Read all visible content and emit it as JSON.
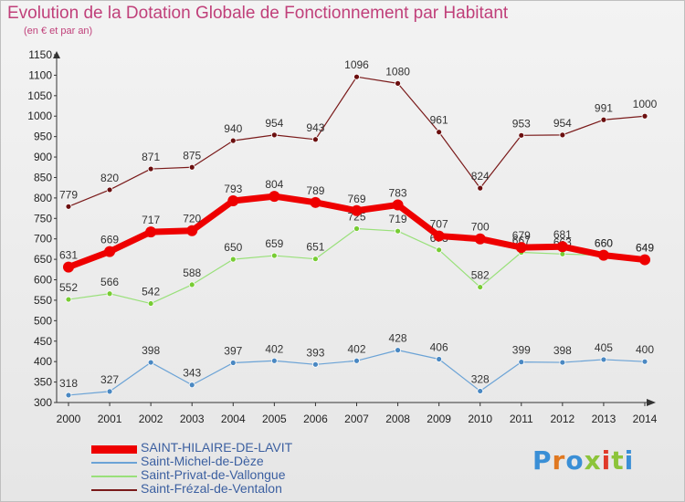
{
  "title": "Evolution de la Dotation Globale de Fonctionnement par Habitant",
  "subtitle": "(en € et par an)",
  "logo": "Proxiti",
  "chart_data": {
    "type": "line",
    "x": [
      "2000",
      "2001",
      "2002",
      "2003",
      "2004",
      "2005",
      "2006",
      "2007",
      "2008",
      "2009",
      "2010",
      "2011",
      "2012",
      "2013",
      "2014"
    ],
    "ylim": [
      300,
      1150
    ],
    "yticks": [
      300,
      350,
      400,
      450,
      500,
      550,
      600,
      650,
      700,
      750,
      800,
      850,
      900,
      950,
      1000,
      1050,
      1100,
      1150
    ],
    "grid": false,
    "legend_position": "bottom-left",
    "series": [
      {
        "name": "Saint-Frézal-de-Ventalon",
        "color": "#7a1a1a",
        "dot_color": "#6b0f0f",
        "width": 1.2,
        "dot_r": 3,
        "values": [
          779,
          820,
          871,
          875,
          940,
          954,
          943,
          1096,
          1080,
          961,
          824,
          953,
          954,
          991,
          1000
        ]
      },
      {
        "name": "Saint-Privat-de-Vallongue",
        "color": "#99e07a",
        "dot_color": "#77cc33",
        "width": 1.2,
        "dot_r": 3,
        "values": [
          552,
          566,
          542,
          588,
          650,
          659,
          651,
          725,
          719,
          673,
          582,
          667,
          663,
          660,
          649
        ]
      },
      {
        "name": "Saint-Michel-de-Dèze",
        "color": "#6ba3d6",
        "dot_color": "#4a88c2",
        "width": 1.2,
        "dot_r": 3,
        "values": [
          318,
          327,
          398,
          343,
          397,
          402,
          393,
          402,
          428,
          406,
          328,
          399,
          398,
          405,
          400
        ]
      },
      {
        "name": "SAINT-HILAIRE-DE-LAVIT",
        "color": "#ee0000",
        "dot_color": "#ee0000",
        "width": 7,
        "dot_r": 6,
        "values": [
          631,
          669,
          717,
          720,
          793,
          804,
          789,
          769,
          783,
          707,
          700,
          679,
          681,
          660,
          649
        ]
      }
    ],
    "legend_order": [
      3,
      2,
      1,
      0
    ],
    "value_labels": [
      [
        "779",
        "820",
        "871",
        "875",
        "940",
        "954",
        "943",
        "1096",
        "1080",
        "961",
        "824",
        "953",
        "954",
        "991",
        "1000"
      ],
      [
        "552",
        "566",
        "542",
        "588",
        "650",
        "659",
        "651",
        "725",
        "719",
        "673",
        "582",
        "667",
        "663",
        "660",
        "649"
      ],
      [
        "318",
        "327",
        "398",
        "343",
        "397",
        "402",
        "393",
        "402",
        "428",
        "406",
        "328",
        "399",
        "398",
        "405",
        "400"
      ],
      [
        "631",
        "669",
        "717",
        "720",
        "793",
        "804",
        "789",
        "769",
        "783",
        "707",
        "700",
        "679",
        "681",
        "660",
        "649"
      ]
    ]
  }
}
